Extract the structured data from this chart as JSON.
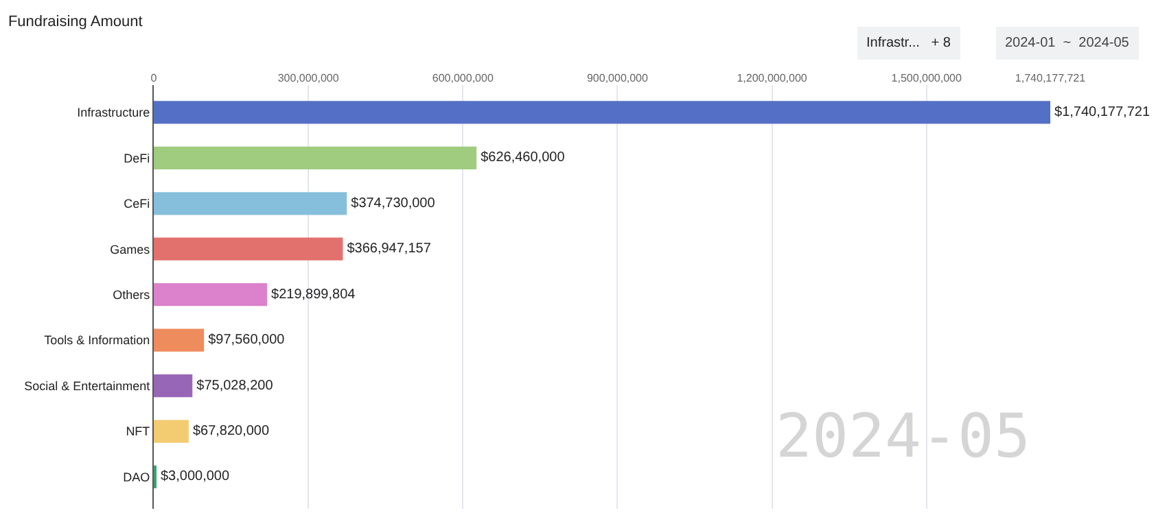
{
  "chart_data": {
    "type": "bar",
    "orientation": "horizontal",
    "title": "Fundraising Amount",
    "categories": [
      "Infrastructure",
      "DeFi",
      "CeFi",
      "Games",
      "Others",
      "Tools & Information",
      "Social & Entertainment",
      "NFT",
      "DAO"
    ],
    "values": [
      1740177721,
      626460000,
      374730000,
      366947157,
      219899804,
      97560000,
      75028200,
      67820000,
      3000000
    ],
    "colors": [
      "#5470c6",
      "#9fcc7f",
      "#86bfdc",
      "#e2706c",
      "#dc82cc",
      "#ef8c5d",
      "#9866b6",
      "#f3cb70",
      "#3ba272"
    ],
    "value_labels": [
      "$1,740,177,721",
      "$626,460,000",
      "$374,730,000",
      "$366,947,157",
      "$219,899,804",
      "$97,560,000",
      "$75,028,200",
      "$67,820,000",
      "$3,000,000"
    ],
    "xlim": [
      0,
      1740177721
    ],
    "xticks": [
      {
        "value": 0,
        "label": "0"
      },
      {
        "value": 300000000,
        "label": "300,000,000"
      },
      {
        "value": 600000000,
        "label": "600,000,000"
      },
      {
        "value": 900000000,
        "label": "900,000,000"
      },
      {
        "value": 1200000000,
        "label": "1,200,000,000"
      },
      {
        "value": 1500000000,
        "label": "1,500,000,000"
      },
      {
        "value": 1740177721,
        "label": "1,740,177,721"
      }
    ],
    "grid": "x",
    "legend": false,
    "annotations": [
      "2024-05",
      "Infrastr...   + 8",
      "2024-01  ~  2024-05"
    ]
  }
}
